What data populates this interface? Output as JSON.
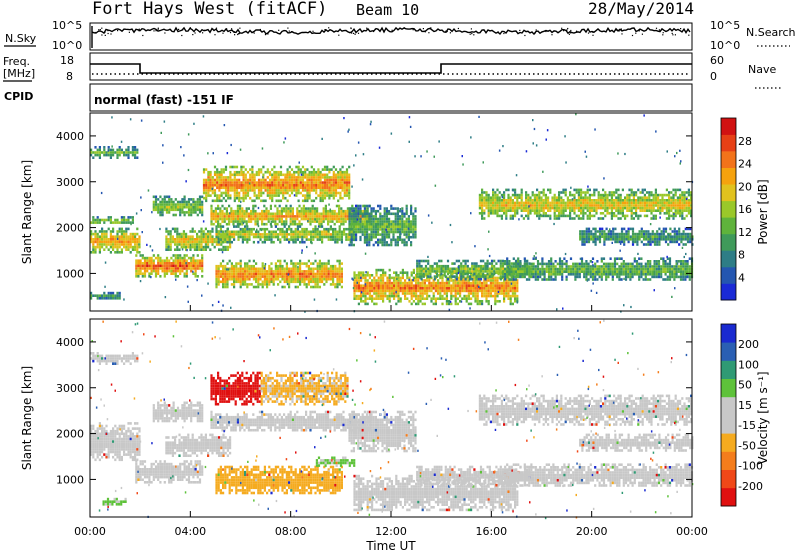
{
  "header": {
    "station": "Fort Hays West (fitACF)",
    "beam": "Beam 10",
    "date": "28/May/2014"
  },
  "top_panels": {
    "nsky_label": "N.Sky",
    "nsky_ticks": [
      "10^5",
      "10^0"
    ],
    "nsearch_label": "N.Search",
    "nsearch_ticks": [
      "10^5",
      "10^0"
    ],
    "freq_label": "Freq.",
    "freq_unit": "[MHz]",
    "freq_ticks": [
      "18",
      "8"
    ],
    "nave_label": "Nave",
    "nave_ticks": [
      "60",
      "0"
    ],
    "cpid_label": "CPID",
    "cpid_text": "normal (fast) -151 IF"
  },
  "chart_data": [
    {
      "type": "heatmap",
      "name": "power",
      "ylabel": "Slant Range [km]",
      "ylim": [
        180,
        4500
      ],
      "yticks": [
        "4000",
        "3000",
        "2000",
        "1000"
      ],
      "xlim": [
        0,
        24
      ],
      "colorbar": {
        "label": "Power [dB]",
        "ticks": [
          "28",
          "24",
          "20",
          "16",
          "12",
          "8",
          "4"
        ],
        "range": [
          0,
          32
        ],
        "colors": [
          "#1a2ad6",
          "#2456b0",
          "#2e7d86",
          "#3f9a5a",
          "#5fb33c",
          "#9ac82a",
          "#e1c21e",
          "#f5a20e",
          "#f2731a",
          "#e64016",
          "#d11212"
        ]
      },
      "echo_bands": [
        {
          "t0": 0.0,
          "t1": 1.9,
          "r0": 3550,
          "r1": 3780,
          "p": 12
        },
        {
          "t0": 0.0,
          "t1": 1.7,
          "r0": 2080,
          "r1": 2250,
          "p": 14
        },
        {
          "t0": 0.0,
          "t1": 2.0,
          "r0": 1450,
          "r1": 2000,
          "p": 20
        },
        {
          "t0": 0.0,
          "t1": 1.2,
          "r0": 450,
          "r1": 600,
          "p": 10
        },
        {
          "t0": 1.8,
          "t1": 4.5,
          "r0": 950,
          "r1": 1420,
          "p": 24
        },
        {
          "t0": 3.0,
          "t1": 5.6,
          "r0": 1500,
          "r1": 2000,
          "p": 18
        },
        {
          "t0": 2.5,
          "t1": 4.5,
          "r0": 2250,
          "r1": 2700,
          "p": 14
        },
        {
          "t0": 4.5,
          "t1": 10.3,
          "r0": 2600,
          "r1": 3350,
          "p": 22
        },
        {
          "t0": 4.8,
          "t1": 11.2,
          "r0": 2050,
          "r1": 2500,
          "p": 20
        },
        {
          "t0": 5.0,
          "t1": 10.5,
          "r0": 1700,
          "r1": 2050,
          "p": 16
        },
        {
          "t0": 5.0,
          "t1": 10.0,
          "r0": 700,
          "r1": 1300,
          "p": 22
        },
        {
          "t0": 10.3,
          "t1": 13.0,
          "r0": 1600,
          "r1": 2500,
          "p": 12
        },
        {
          "t0": 10.5,
          "t1": 17.0,
          "r0": 350,
          "r1": 1100,
          "p": 22
        },
        {
          "t0": 13.0,
          "t1": 17.5,
          "r0": 900,
          "r1": 1300,
          "p": 14
        },
        {
          "t0": 15.5,
          "t1": 24.0,
          "r0": 2200,
          "r1": 2850,
          "p": 18
        },
        {
          "t0": 16.5,
          "t1": 24.0,
          "r0": 850,
          "r1": 1350,
          "p": 12
        },
        {
          "t0": 19.5,
          "t1": 24.0,
          "r0": 1650,
          "r1": 2000,
          "p": 10
        }
      ]
    },
    {
      "type": "heatmap",
      "name": "velocity",
      "ylabel": "Slant Range [km]",
      "xlabel": "Time UT",
      "ylim": [
        180,
        4500
      ],
      "yticks": [
        "4000",
        "3000",
        "2000",
        "1000"
      ],
      "xlim": [
        0,
        24
      ],
      "xticks": [
        "00:00",
        "04:00",
        "08:00",
        "12:00",
        "16:00",
        "20:00",
        "00:00"
      ],
      "colorbar": {
        "label": "Velocity [m s⁻¹]",
        "ticks": [
          "200",
          "100",
          "50",
          "15",
          "-15",
          "-50",
          "-100",
          "-200"
        ],
        "range": [
          -250,
          250
        ],
        "colors": [
          "#e01010",
          "#f04818",
          "#f47d1c",
          "#f5ab20",
          "#c8c8c8",
          "#c8c8c8",
          "#5ec23a",
          "#2f9a74",
          "#2a5fb3",
          "#1a2ad0"
        ]
      },
      "echo_bands": [
        {
          "t0": 0.0,
          "t1": 1.9,
          "r0": 3550,
          "r1": 3780,
          "v": 0
        },
        {
          "t0": 0.0,
          "t1": 2.0,
          "r0": 1450,
          "r1": 2250,
          "v": 0
        },
        {
          "t0": 0.5,
          "t1": 1.4,
          "r0": 450,
          "r1": 600,
          "v": 60
        },
        {
          "t0": 1.8,
          "t1": 4.5,
          "r0": 950,
          "r1": 1420,
          "v": 0
        },
        {
          "t0": 3.0,
          "t1": 5.6,
          "r0": 1500,
          "r1": 2000,
          "v": -20
        },
        {
          "t0": 2.5,
          "t1": 4.5,
          "r0": 2250,
          "r1": 2700,
          "v": 0
        },
        {
          "t0": 4.8,
          "t1": 6.8,
          "r0": 2650,
          "r1": 3350,
          "v": -220
        },
        {
          "t0": 6.8,
          "t1": 10.3,
          "r0": 2650,
          "r1": 3350,
          "v": -60
        },
        {
          "t0": 4.8,
          "t1": 11.2,
          "r0": 2050,
          "r1": 2500,
          "v": 0
        },
        {
          "t0": 5.0,
          "t1": 10.0,
          "r0": 700,
          "r1": 1300,
          "v": -70
        },
        {
          "t0": 9.0,
          "t1": 10.5,
          "r0": 1300,
          "r1": 1500,
          "v": 60
        },
        {
          "t0": 10.3,
          "t1": 13.0,
          "r0": 1600,
          "r1": 2500,
          "v": 30
        },
        {
          "t0": 10.5,
          "t1": 17.0,
          "r0": 350,
          "r1": 1100,
          "v": 0
        },
        {
          "t0": 13.0,
          "t1": 17.5,
          "r0": 900,
          "r1": 1300,
          "v": 0
        },
        {
          "t0": 15.5,
          "t1": 24.0,
          "r0": 2200,
          "r1": 2850,
          "v": 0
        },
        {
          "t0": 16.5,
          "t1": 24.0,
          "r0": 850,
          "r1": 1350,
          "v": 0
        },
        {
          "t0": 19.5,
          "t1": 24.0,
          "r0": 1650,
          "r1": 2000,
          "v": 0
        }
      ]
    }
  ]
}
